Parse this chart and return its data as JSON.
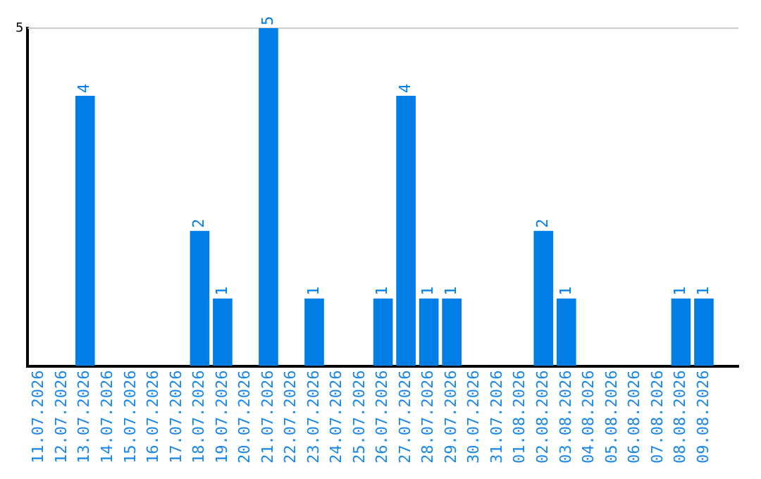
{
  "chart_data": {
    "type": "bar",
    "categories": [
      "11.07.2026",
      "12.07.2026",
      "13.07.2026",
      "14.07.2026",
      "15.07.2026",
      "16.07.2026",
      "17.07.2026",
      "18.07.2026",
      "19.07.2026",
      "20.07.2026",
      "21.07.2026",
      "22.07.2026",
      "23.07.2026",
      "24.07.2026",
      "25.07.2026",
      "26.07.2026",
      "27.07.2026",
      "28.07.2026",
      "29.07.2026",
      "30.07.2026",
      "31.07.2026",
      "01.08.2026",
      "02.08.2026",
      "03.08.2026",
      "04.08.2026",
      "05.08.2026",
      "06.08.2026",
      "07.08.2026",
      "08.08.2026",
      "09.08.2026",
      null
    ],
    "values": [
      0,
      0,
      4,
      0,
      0,
      0,
      0,
      2,
      1,
      0,
      5,
      0,
      1,
      0,
      0,
      1,
      4,
      1,
      1,
      0,
      0,
      0,
      2,
      1,
      0,
      0,
      0,
      0,
      1,
      1,
      0
    ],
    "value_labels": [
      null,
      null,
      "4",
      null,
      null,
      null,
      null,
      "2",
      "1",
      null,
      "5",
      null,
      "1",
      null,
      null,
      "1",
      "4",
      "1",
      "1",
      null,
      null,
      null,
      "2",
      "1",
      null,
      null,
      null,
      null,
      "1",
      "1",
      null
    ],
    "color": "#007ee5",
    "ylim": [
      0,
      5
    ],
    "yticks": [
      5
    ],
    "ref_lines": [
      {
        "axis": "y",
        "value": 5,
        "color": "#cccccc"
      }
    ],
    "legend": false
  }
}
